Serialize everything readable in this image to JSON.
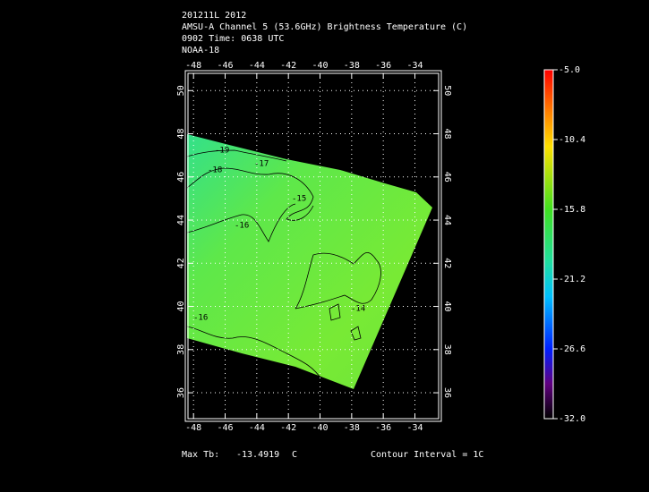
{
  "header": {
    "lines": [
      "201211L 2012",
      "AMSU-A Channel 5 (53.6GHz) Brightness Temperature (C)",
      "0902 Time: 0638 UTC",
      "NOAA-18"
    ]
  },
  "map": {
    "xlim": [
      -48.35,
      -32.5
    ],
    "ylim": [
      34.8,
      50.8
    ],
    "xticks": [
      -48,
      -46,
      -44,
      -42,
      -40,
      -38,
      -36,
      -34
    ],
    "yticks": [
      36,
      38,
      40,
      42,
      44,
      46,
      48,
      50
    ],
    "contour_labels": [
      "-19",
      "-18",
      "-17",
      "-16",
      "-15",
      "-14",
      "-16"
    ]
  },
  "colorbar": {
    "lim": [
      -32,
      -5
    ],
    "ticks": [
      {
        "value": -5,
        "label": "-5.0"
      },
      -10.4,
      -15.8,
      -21.2,
      -26.6,
      {
        "value": -32,
        "label": "-32.0"
      }
    ]
  },
  "footer": {
    "max_label": "Max Tb:",
    "max_value": "-13.4919",
    "unit": "C",
    "contour_interval": "Contour Interval = 1C"
  }
}
